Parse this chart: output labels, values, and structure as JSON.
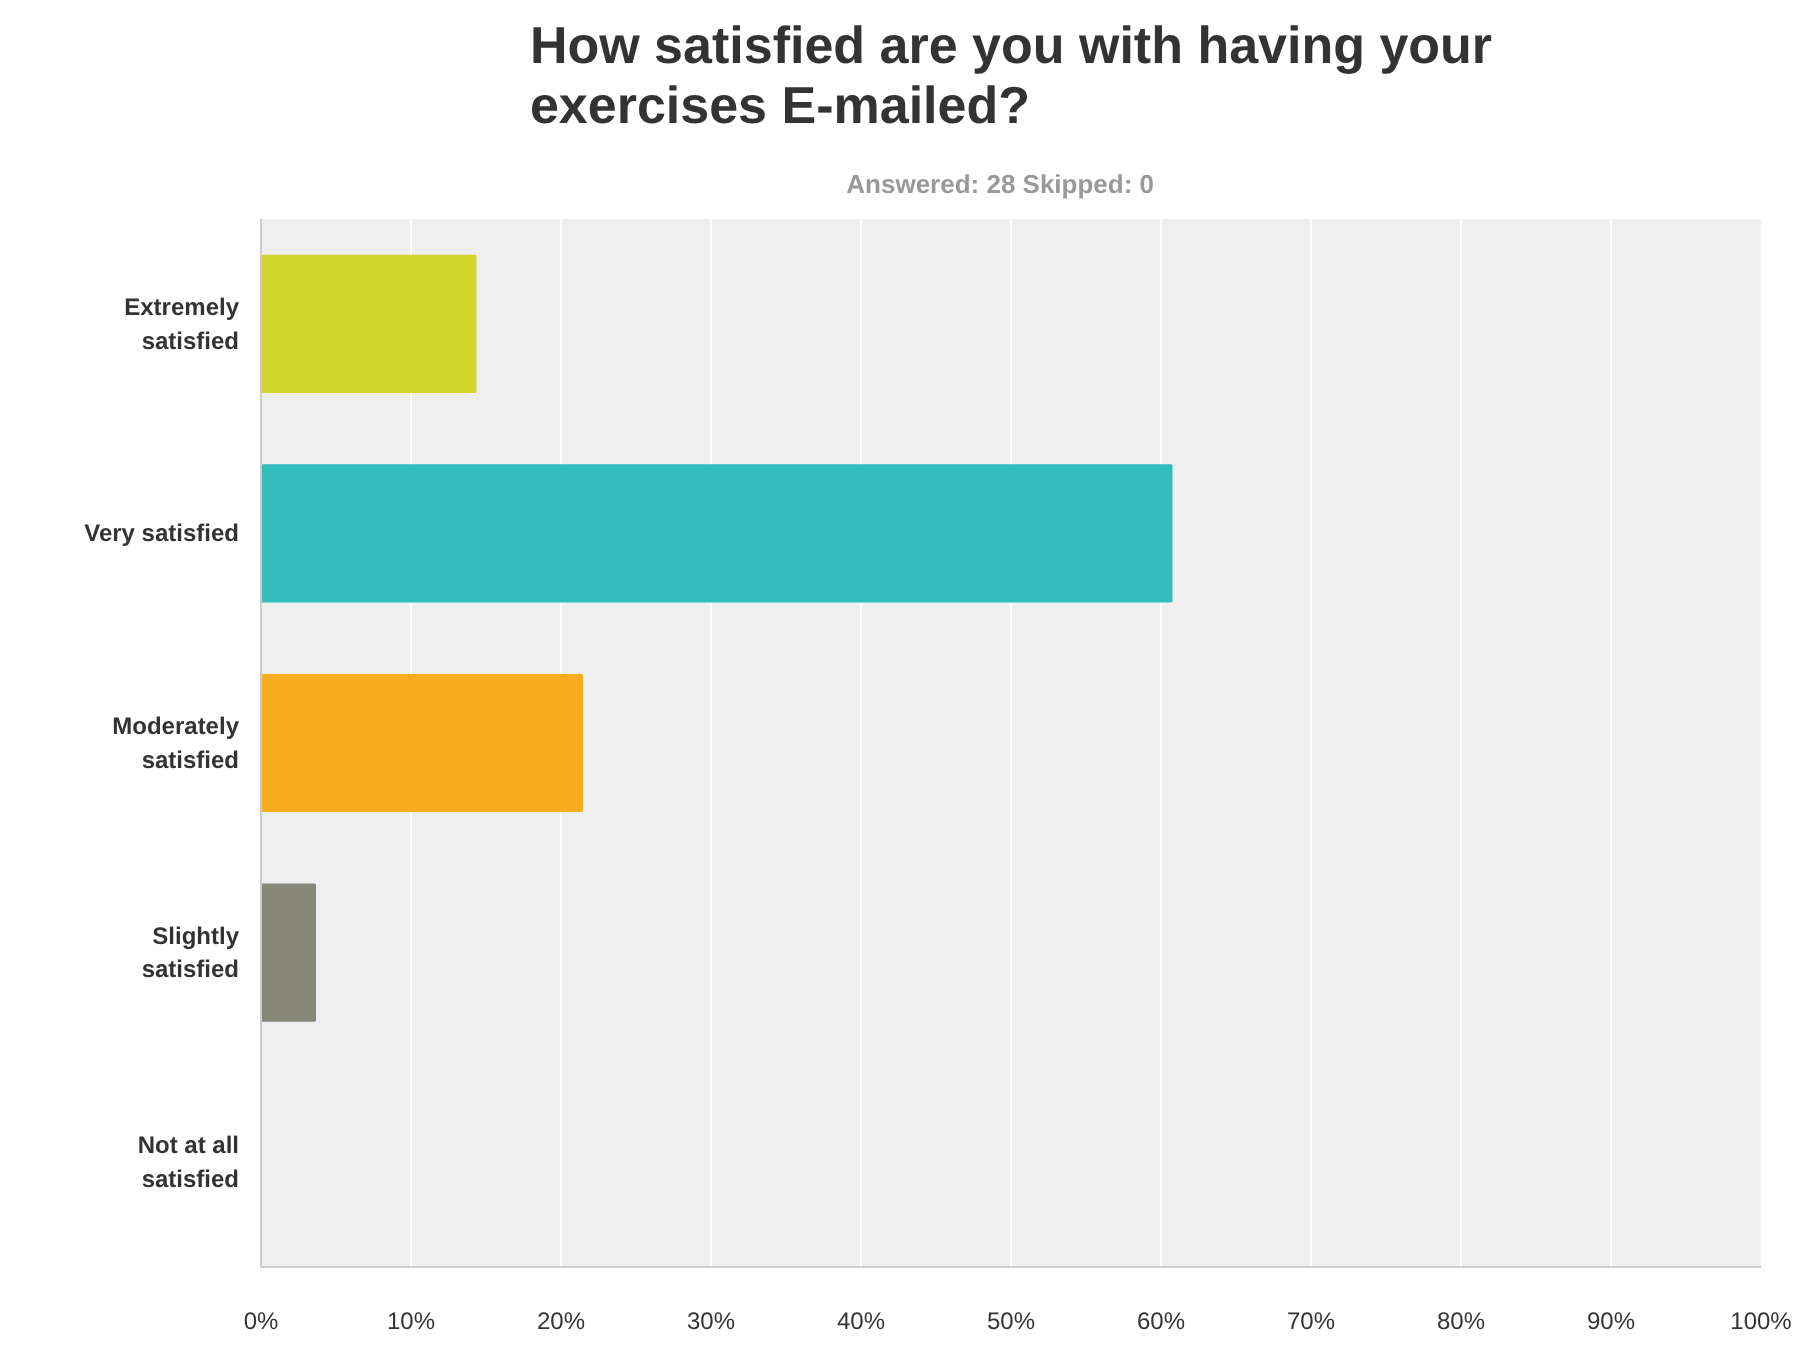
{
  "chart_data": {
    "type": "bar",
    "orientation": "horizontal",
    "title": "How satisfied are you with having your\nexercises E-mailed?",
    "subtitle": "Answered: 28    Skipped: 0",
    "categories": [
      "Extremely\nsatisfied",
      "Very satisfied",
      "Moderately\nsatisfied",
      "Slightly\nsatisfied",
      "Not at all\nsatisfied"
    ],
    "values": [
      14.3,
      60.7,
      21.4,
      3.6,
      0
    ],
    "colors": [
      "#d0d52a",
      "#33bdbd",
      "#f6ae1e",
      "#888878",
      "#cccccc"
    ],
    "xlim": [
      0,
      100
    ],
    "xticks": [
      {
        "value": 0,
        "label": "0%"
      },
      {
        "value": 10,
        "label": "10%"
      },
      {
        "value": 20,
        "label": "20%"
      },
      {
        "value": 30,
        "label": "30%"
      },
      {
        "value": 40,
        "label": "40%"
      },
      {
        "value": 50,
        "label": "50%"
      },
      {
        "value": 60,
        "label": "60%"
      },
      {
        "value": 70,
        "label": "70%"
      },
      {
        "value": 80,
        "label": "80%"
      },
      {
        "value": 90,
        "label": "90%"
      },
      {
        "value": 100,
        "label": "100%"
      }
    ],
    "grid": "x"
  }
}
